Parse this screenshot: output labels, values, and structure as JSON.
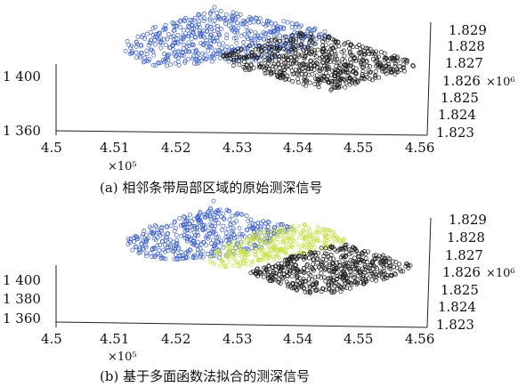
{
  "chart_data": [
    {
      "type": "scatter",
      "caption": "(a) 相邻条带局部区域的原始测深信号",
      "x_ticks": [
        "4.5",
        "4.51",
        "4.52",
        "4.53",
        "4.54",
        "4.55",
        "4.56"
      ],
      "x_multiplier": "×10⁵",
      "y_ticks": [
        "1.829",
        "1.828",
        "1.827",
        "1.826",
        "1.825",
        "1.824",
        "1.823"
      ],
      "y_multiplier": "×10⁶",
      "z_ticks": [
        "1 400",
        "1 360"
      ],
      "xlim": [
        450000,
        456000
      ],
      "ylim": [
        1823000,
        1829000
      ],
      "series": [
        {
          "color": "#3b5fc9"
        },
        {
          "color": "#1a1a1a"
        }
      ]
    },
    {
      "type": "scatter",
      "caption": "(b) 基于多面函数法拟合的测深信号",
      "x_ticks": [
        "4.5",
        "4.51",
        "4.52",
        "4.53",
        "4.54",
        "4.55",
        "4.56"
      ],
      "x_multiplier": "×10⁵",
      "y_ticks": [
        "1.829",
        "1.828",
        "1.827",
        "1.826",
        "1.825",
        "1.824",
        "1.823"
      ],
      "y_multiplier": "×10⁶",
      "z_ticks": [
        "1 400",
        "1 380",
        "1 360"
      ],
      "xlim": [
        450000,
        456000
      ],
      "ylim": [
        1823000,
        1829000
      ],
      "series": [
        {
          "color": "#3b5fc9"
        },
        {
          "color": "#c8e04a"
        },
        {
          "color": "#1a1a1a"
        }
      ]
    }
  ]
}
